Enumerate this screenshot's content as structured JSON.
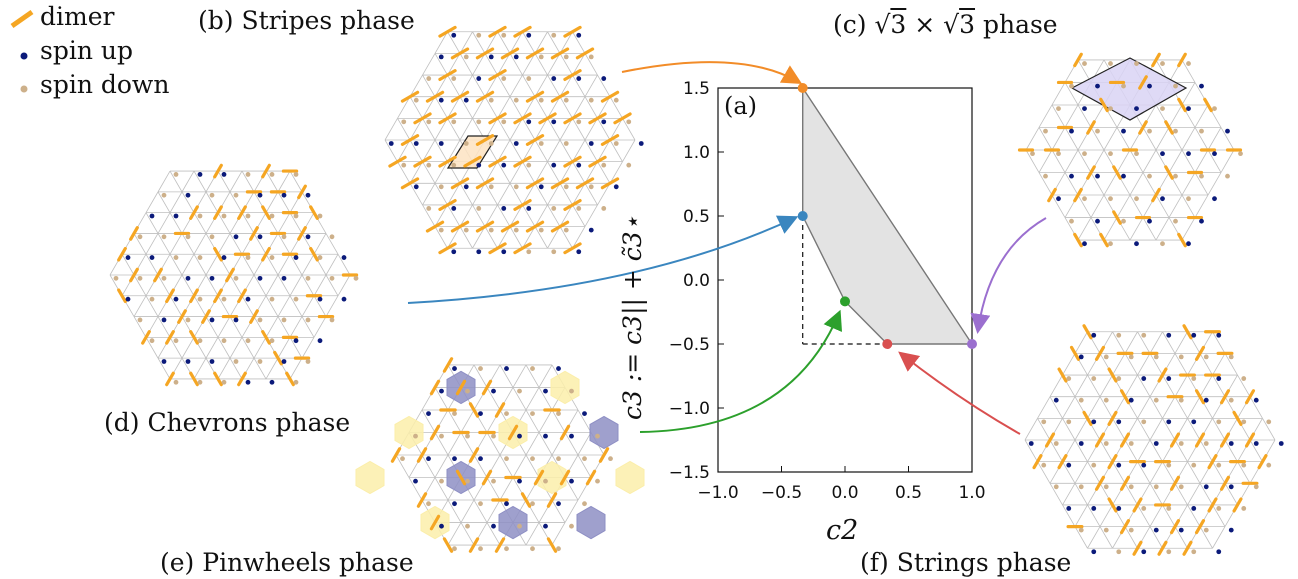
{
  "legend": {
    "dimer": "dimer",
    "spin_up": "spin up",
    "spin_down": "spin down"
  },
  "colors": {
    "dimer": "#f5a623",
    "spin_up": "#0b1a7a",
    "spin_down": "#cdb08a",
    "lattice": "#bfbfbf",
    "region": "#e3e3e3",
    "stripes_cell": "#fde3c2",
    "root3_cell": "#d9d3f4",
    "pinwheel_blue": "#8e8fc4",
    "pinwheel_yellow": "#fbeeaa",
    "arrow_orange": "#f28c28",
    "arrow_blue": "#3a86bf",
    "arrow_purple": "#9b6fcf",
    "arrow_green": "#2ca02c",
    "arrow_red": "#d94f4f"
  },
  "panels": {
    "b": "(b) Stripes phase",
    "c_prefix": "(c)",
    "c_root": "3",
    "c_times": "×",
    "c_suffix": "phase",
    "d": "(d) Chevrons phase",
    "e": "(e) Pinwheels phase",
    "f": "(f) Strings phase"
  },
  "chart_data": {
    "type": "area",
    "panel_label": "(a)",
    "xlabel": "c2",
    "ylabel": "c3 := c3|| + c̃3⋆",
    "xlim": [
      -1.0,
      1.0
    ],
    "ylim": [
      -1.5,
      1.5
    ],
    "x_ticks": [
      "−1.0",
      "−0.5",
      "0.0",
      "0.5",
      "1.0"
    ],
    "x_tick_values": [
      -1.0,
      -0.5,
      0.0,
      0.5,
      1.0
    ],
    "y_ticks": [
      "1.5",
      "1.0",
      "0.5",
      "0.0",
      "−0.5",
      "−1.0",
      "−1.5"
    ],
    "y_tick_values": [
      1.5,
      1.0,
      0.5,
      0.0,
      -0.5,
      -1.0,
      -1.5
    ],
    "region": [
      [
        -0.333,
        1.5
      ],
      [
        1.0,
        -0.5
      ],
      [
        0.333,
        -0.5
      ],
      [
        0.0,
        -0.167
      ],
      [
        -0.333,
        0.5
      ]
    ],
    "dashed": [
      [
        [
          -0.333,
          0.5
        ],
        [
          -0.333,
          -0.5
        ]
      ],
      [
        [
          -0.333,
          -0.5
        ],
        [
          0.333,
          -0.5
        ]
      ]
    ],
    "points": [
      {
        "phase": "b",
        "x": -0.333,
        "y": 1.5,
        "color": "#f28c28"
      },
      {
        "phase": "d",
        "x": -0.333,
        "y": 0.5,
        "color": "#3a86bf"
      },
      {
        "phase": "e",
        "x": 0.0,
        "y": -0.167,
        "color": "#2ca02c"
      },
      {
        "phase": "f",
        "x": 0.333,
        "y": -0.5,
        "color": "#d94f4f"
      },
      {
        "phase": "c",
        "x": 1.0,
        "y": -0.5,
        "color": "#9b6fcf"
      }
    ]
  }
}
